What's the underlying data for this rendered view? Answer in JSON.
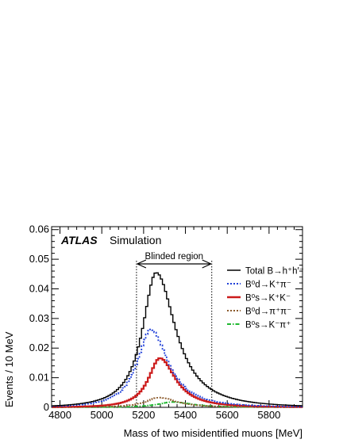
{
  "chart_data": {
    "type": "line",
    "step": true,
    "xlabel": "Mass of two misidentified muons [MeV]",
    "ylabel": "Events / 10 MeV",
    "xlim": [
      4760,
      5960
    ],
    "ylim": [
      0,
      0.061
    ],
    "x_ticks": [
      4800,
      5000,
      5200,
      5400,
      5600,
      5800
    ],
    "y_ticks": [
      0,
      0.01,
      0.02,
      0.03,
      0.04,
      0.05,
      0.06
    ],
    "y_tick_labels": [
      "0",
      "0.01",
      "0.02",
      "0.03",
      "0.04",
      "0.05",
      "0.06"
    ],
    "bin_width": 10,
    "experiment": "ATLAS",
    "experiment_tag": "Simulation",
    "blinded_region": {
      "label": "Blinded region",
      "x_min": 5166,
      "x_max": 5526
    },
    "legend": {
      "placement": "top-right"
    },
    "series": [
      {
        "name": "Total B→h⁺h′⁻",
        "color": "#000000",
        "style": "solid",
        "shape": "asym",
        "peak_x": 5260,
        "peak_y": 0.0455,
        "width_left": 78,
        "width_right": 112
      },
      {
        "name": "B⁰d→K⁺π⁻",
        "color": "#1f3fd8",
        "style": "dotted",
        "shape": "asym",
        "peak_x": 5235,
        "peak_y": 0.0263,
        "width_left": 78,
        "width_right": 100
      },
      {
        "name": "B⁰s→K⁺K⁻",
        "color": "#cc1a1a",
        "style": "solid",
        "shape": "asym",
        "peak_x": 5278,
        "peak_y": 0.0166,
        "width_left": 66,
        "width_right": 90
      },
      {
        "name": "B⁰d→π⁺π⁻",
        "color": "#8b5a2b",
        "style": "dotted",
        "shape": "asym",
        "peak_x": 5275,
        "peak_y": 0.0033,
        "width_left": 78,
        "width_right": 100
      },
      {
        "name": "B⁰s→K⁻π⁺",
        "color": "#1fb830",
        "style": "dashdot",
        "shape": "asym",
        "peak_x": 5340,
        "peak_y": 0.0018,
        "width_left": 85,
        "width_right": 110
      }
    ]
  }
}
